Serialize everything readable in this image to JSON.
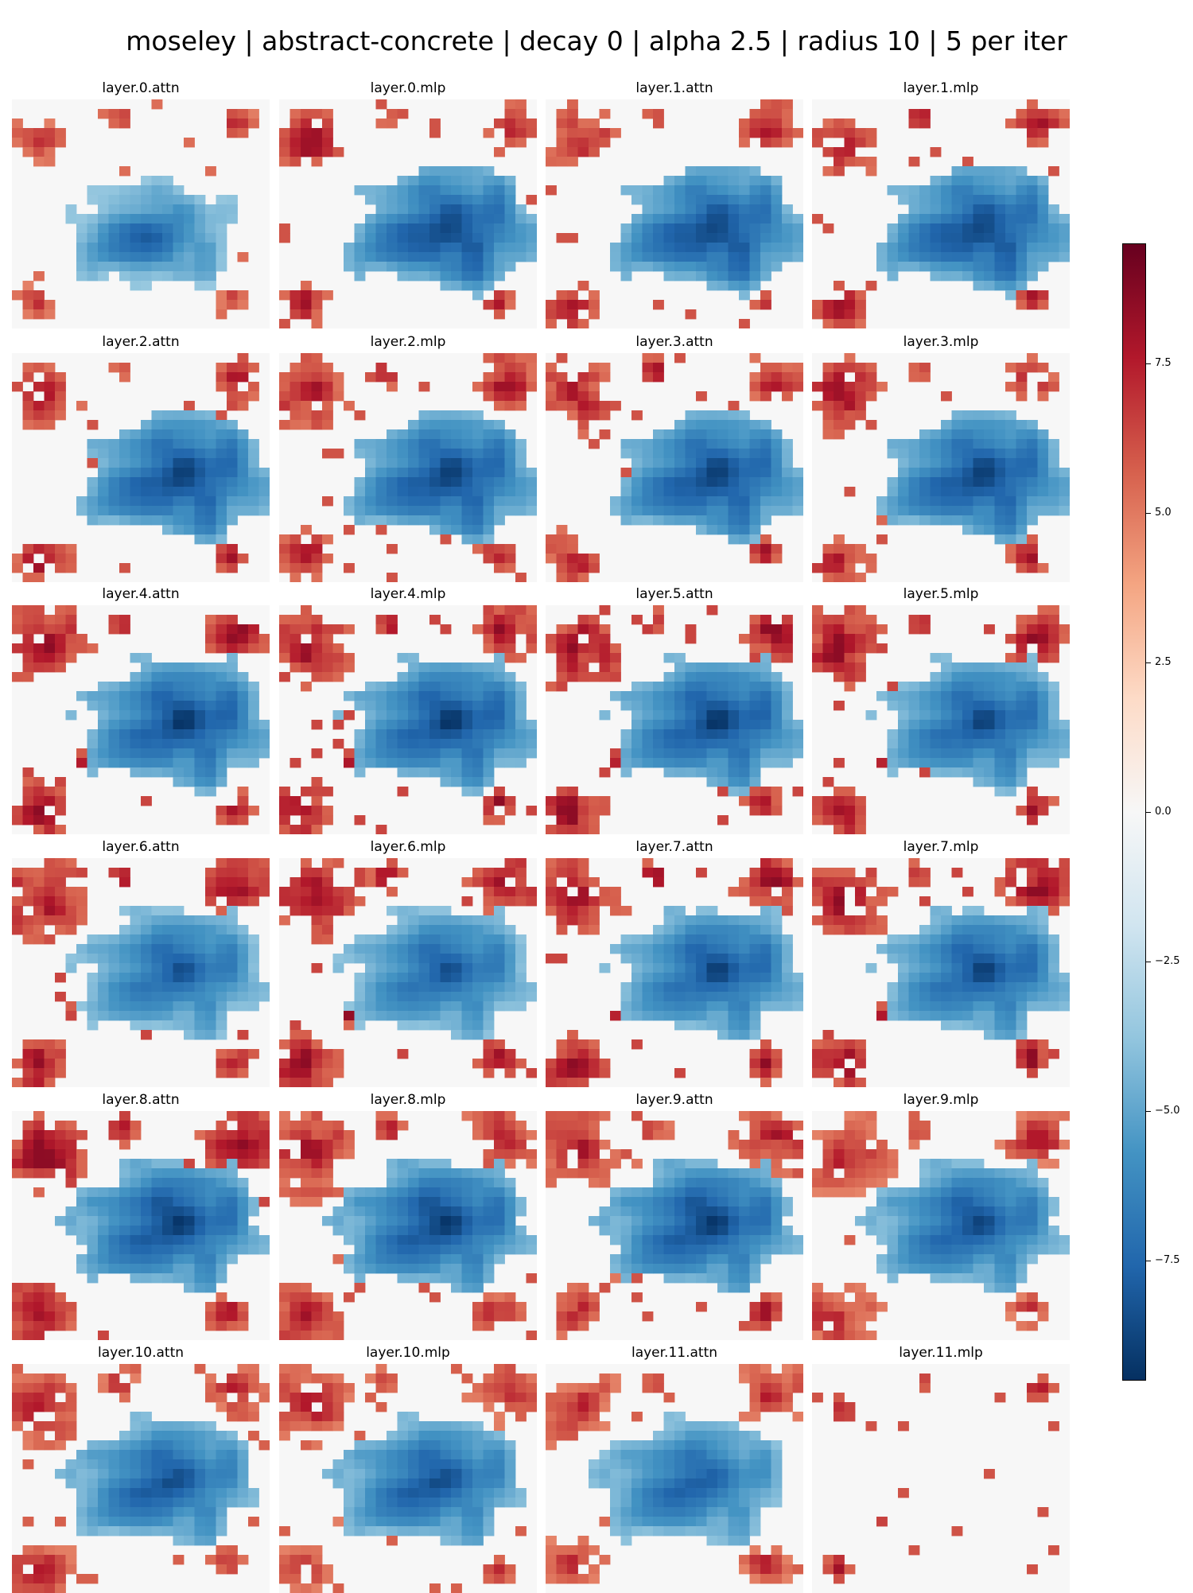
{
  "chart_data": {
    "type": "heatmap",
    "title": "moseley | abstract-concrete | decay 0 | alpha 2.5 | radius 10 | 5 per iter",
    "grid_rows": 6,
    "grid_cols": 4,
    "cell_grid": [
      24,
      24
    ],
    "panels": [
      {
        "name": "layer.0.attn",
        "blue_scale": 0.85,
        "red_scale": 0.75,
        "red_coverage": 0.18,
        "blue_blob": [
          0.55,
          0.6,
          0.28
        ]
      },
      {
        "name": "layer.0.mlp",
        "blue_scale": 1.0,
        "red_scale": 0.85,
        "red_coverage": 0.25,
        "blue_blob": [
          0.66,
          0.58,
          0.33
        ]
      },
      {
        "name": "layer.1.attn",
        "blue_scale": 1.0,
        "red_scale": 0.85,
        "red_coverage": 0.27,
        "blue_blob": [
          0.66,
          0.58,
          0.33
        ]
      },
      {
        "name": "layer.1.mlp",
        "blue_scale": 1.0,
        "red_scale": 0.85,
        "red_coverage": 0.28,
        "blue_blob": [
          0.66,
          0.58,
          0.33
        ]
      },
      {
        "name": "layer.2.attn",
        "blue_scale": 1.0,
        "red_scale": 0.85,
        "red_coverage": 0.32,
        "blue_blob": [
          0.66,
          0.55,
          0.33
        ]
      },
      {
        "name": "layer.2.mlp",
        "blue_scale": 1.0,
        "red_scale": 0.85,
        "red_coverage": 0.34,
        "blue_blob": [
          0.66,
          0.55,
          0.33
        ]
      },
      {
        "name": "layer.3.attn",
        "blue_scale": 1.0,
        "red_scale": 0.85,
        "red_coverage": 0.34,
        "blue_blob": [
          0.66,
          0.55,
          0.33
        ]
      },
      {
        "name": "layer.3.mlp",
        "blue_scale": 1.0,
        "red_scale": 0.85,
        "red_coverage": 0.34,
        "blue_blob": [
          0.66,
          0.55,
          0.33
        ]
      },
      {
        "name": "layer.4.attn",
        "blue_scale": 1.0,
        "red_scale": 0.9,
        "red_coverage": 0.37,
        "blue_blob": [
          0.66,
          0.52,
          0.33
        ]
      },
      {
        "name": "layer.4.mlp",
        "blue_scale": 1.0,
        "red_scale": 0.9,
        "red_coverage": 0.37,
        "blue_blob": [
          0.66,
          0.52,
          0.33
        ]
      },
      {
        "name": "layer.5.attn",
        "blue_scale": 1.0,
        "red_scale": 0.9,
        "red_coverage": 0.38,
        "blue_blob": [
          0.66,
          0.52,
          0.33
        ]
      },
      {
        "name": "layer.5.mlp",
        "blue_scale": 0.95,
        "red_scale": 0.9,
        "red_coverage": 0.38,
        "blue_blob": [
          0.66,
          0.52,
          0.33
        ]
      },
      {
        "name": "layer.6.attn",
        "blue_scale": 0.9,
        "red_scale": 0.9,
        "red_coverage": 0.4,
        "blue_blob": [
          0.64,
          0.5,
          0.33
        ]
      },
      {
        "name": "layer.6.mlp",
        "blue_scale": 0.9,
        "red_scale": 0.9,
        "red_coverage": 0.4,
        "blue_blob": [
          0.64,
          0.5,
          0.33
        ]
      },
      {
        "name": "layer.7.attn",
        "blue_scale": 0.95,
        "red_scale": 0.9,
        "red_coverage": 0.41,
        "blue_blob": [
          0.66,
          0.5,
          0.33
        ]
      },
      {
        "name": "layer.7.mlp",
        "blue_scale": 0.95,
        "red_scale": 0.9,
        "red_coverage": 0.42,
        "blue_blob": [
          0.66,
          0.5,
          0.33
        ]
      },
      {
        "name": "layer.8.attn",
        "blue_scale": 1.0,
        "red_scale": 0.9,
        "red_coverage": 0.44,
        "blue_blob": [
          0.62,
          0.5,
          0.33
        ]
      },
      {
        "name": "layer.8.mlp",
        "blue_scale": 1.0,
        "red_scale": 0.85,
        "red_coverage": 0.45,
        "blue_blob": [
          0.62,
          0.5,
          0.33
        ]
      },
      {
        "name": "layer.9.attn",
        "blue_scale": 1.0,
        "red_scale": 0.85,
        "red_coverage": 0.46,
        "blue_blob": [
          0.62,
          0.5,
          0.33
        ]
      },
      {
        "name": "layer.9.mlp",
        "blue_scale": 0.95,
        "red_scale": 0.8,
        "red_coverage": 0.46,
        "blue_blob": [
          0.62,
          0.5,
          0.33
        ]
      },
      {
        "name": "layer.10.attn",
        "blue_scale": 0.95,
        "red_scale": 0.8,
        "red_coverage": 0.44,
        "blue_blob": [
          0.6,
          0.52,
          0.32
        ]
      },
      {
        "name": "layer.10.mlp",
        "blue_scale": 0.95,
        "red_scale": 0.8,
        "red_coverage": 0.44,
        "blue_blob": [
          0.6,
          0.52,
          0.32
        ]
      },
      {
        "name": "layer.11.attn",
        "blue_scale": 0.9,
        "red_scale": 0.8,
        "red_coverage": 0.44,
        "blue_blob": [
          0.58,
          0.52,
          0.32
        ]
      },
      {
        "name": "layer.11.mlp",
        "blue_scale": 0.0,
        "red_scale": 0.85,
        "red_coverage": 0.03,
        "blue_blob": [
          0.5,
          0.5,
          0.0
        ]
      }
    ],
    "colorbar": {
      "colormap": "RdBu_r",
      "vmin": -9.5,
      "vmax": 9.5,
      "ticks": [
        7.5,
        5.0,
        2.5,
        0.0,
        -2.5,
        -5.0,
        -7.5
      ],
      "tick_labels": [
        "7.5",
        "5.0",
        "2.5",
        "0.0",
        "−2.5",
        "−5.0",
        "−7.5"
      ]
    },
    "colors": {
      "neutral": "#f7f7f7",
      "red_scale": [
        "#fddbc7",
        "#f4a582",
        "#d6604d",
        "#b2182b",
        "#67001f"
      ],
      "blue_scale": [
        "#d1e5f0",
        "#92c5de",
        "#4393c3",
        "#2166ac",
        "#053061"
      ]
    }
  }
}
